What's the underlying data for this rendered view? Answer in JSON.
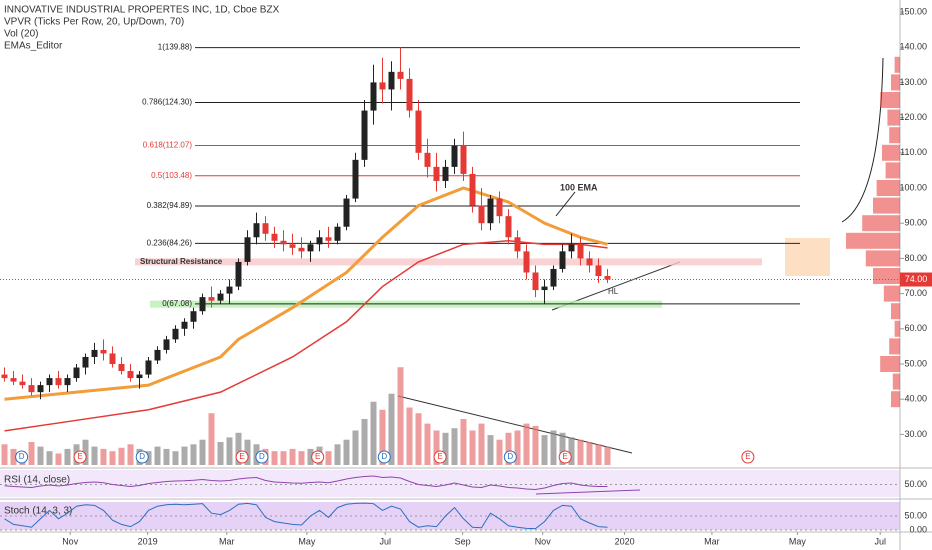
{
  "chart_data": {
    "type": "candlestick",
    "title": "INNOVATIVE INDUSTRIAL PROPERTES INC, 1D, Cboe BZX",
    "indicators": [
      "VPVR (Ticks Per Row, 20, Up/Down, 70)",
      "Vol (20)",
      "EMAs_Editor"
    ],
    "up_color": "#222222",
    "down_color": "#e53935",
    "categories": [
      null,
      null,
      null,
      null,
      null,
      null,
      null,
      null,
      null,
      null,
      null,
      null,
      null,
      null,
      null,
      null,
      null,
      null,
      null,
      null,
      null,
      null,
      null,
      null,
      null,
      null,
      null,
      null,
      null,
      null,
      null,
      null,
      null,
      null,
      null,
      null,
      null,
      null,
      null,
      null,
      null,
      null,
      null,
      null,
      null,
      null,
      null,
      null,
      null,
      null,
      null,
      null,
      null,
      null,
      null,
      null,
      null,
      null,
      null,
      null,
      null,
      null,
      null,
      null,
      null,
      null,
      null,
      null
    ],
    "open": [
      47,
      46,
      45,
      44,
      42,
      44,
      46,
      44,
      46,
      49,
      52,
      54,
      53,
      50,
      48,
      46,
      47,
      51,
      54,
      57,
      60,
      62,
      65,
      69,
      68,
      70,
      72,
      79,
      86,
      90,
      87,
      85,
      84,
      83,
      82,
      84,
      86,
      85,
      89,
      97,
      108,
      122,
      130,
      128,
      133,
      131,
      122,
      110,
      106,
      102,
      106,
      112,
      104,
      95,
      90,
      97,
      92,
      86,
      82,
      76,
      71,
      72,
      77,
      82,
      84,
      80,
      78,
      75
    ],
    "high": [
      49,
      48,
      47,
      46,
      45,
      47,
      48,
      47,
      50,
      53,
      56,
      57,
      55,
      52,
      50,
      48,
      52,
      55,
      58,
      61,
      63,
      66,
      70,
      72,
      71,
      74,
      80,
      88,
      93,
      92,
      89,
      88,
      87,
      86,
      85,
      88,
      89,
      90,
      98,
      110,
      125,
      135,
      137,
      136,
      139.88,
      134,
      125,
      114,
      110,
      108,
      114,
      116,
      106,
      100,
      98,
      99,
      94,
      88,
      84,
      78,
      74,
      78,
      84,
      87,
      86,
      82,
      80,
      77
    ],
    "low": [
      45,
      44,
      43,
      41,
      40,
      42,
      43,
      42,
      45,
      47,
      50,
      51,
      49,
      47,
      45,
      43,
      46,
      50,
      53,
      56,
      58,
      60,
      64,
      66,
      67,
      67.08,
      71,
      78,
      84,
      85,
      83,
      82,
      81,
      80,
      79,
      82,
      83,
      84,
      88,
      96,
      106,
      118,
      124,
      122,
      128,
      120,
      108,
      103,
      99,
      100,
      104,
      102,
      93,
      88,
      88,
      90,
      84,
      80,
      74,
      69,
      67,
      71,
      76,
      80,
      78,
      76,
      73,
      73
    ],
    "close": [
      46,
      45,
      44,
      42,
      44,
      46,
      44,
      46,
      49,
      52,
      54,
      53,
      50,
      48,
      46,
      47,
      51,
      54,
      57,
      60,
      62,
      65,
      69,
      68,
      70,
      72,
      79,
      86,
      90,
      87,
      85,
      84,
      83,
      82,
      84,
      86,
      85,
      89,
      97,
      108,
      122,
      130,
      128,
      133,
      131,
      122,
      110,
      106,
      102,
      106,
      112,
      104,
      95,
      90,
      97,
      92,
      86,
      82,
      76,
      71,
      72,
      77,
      82,
      84,
      80,
      78,
      75,
      74
    ],
    "volume": [
      18,
      14,
      12,
      20,
      16,
      12,
      10,
      14,
      18,
      22,
      16,
      14,
      12,
      15,
      18,
      14,
      12,
      16,
      14,
      12,
      16,
      18,
      22,
      45,
      20,
      24,
      28,
      22,
      18,
      14,
      12,
      12,
      14,
      12,
      14,
      16,
      12,
      18,
      22,
      30,
      40,
      55,
      48,
      62,
      85,
      50,
      45,
      36,
      30,
      28,
      32,
      40,
      30,
      36,
      26,
      22,
      28,
      30,
      36,
      34,
      26,
      30,
      28,
      24,
      22,
      20,
      18,
      16
    ],
    "volume_ylim": [
      0,
      100
    ],
    "ema100": {
      "name": "100 EMA",
      "color": "#f39c3a",
      "x": [
        0,
        8,
        16,
        24,
        26,
        32,
        38,
        42,
        46,
        51,
        56,
        60,
        64,
        67
      ],
      "values": [
        40,
        42,
        44,
        52,
        57,
        66,
        76,
        86,
        95,
        100,
        96,
        90,
        86,
        84
      ]
    },
    "ema200": {
      "color": "#e53935",
      "x": [
        0,
        8,
        16,
        24,
        32,
        38,
        42,
        46,
        51,
        56,
        60,
        64,
        67
      ],
      "values": [
        31,
        34,
        37,
        42,
        52,
        62,
        72,
        79,
        84,
        85,
        84,
        84,
        83
      ]
    },
    "fib": [
      {
        "value": 139.88,
        "label": "1(139.88)",
        "color": "#222222"
      },
      {
        "value": 124.3,
        "label": "0.786(124.30)",
        "color": "#222222"
      },
      {
        "value": 112.07,
        "label": "0.618(112.07)",
        "color": "#e53935"
      },
      {
        "value": 103.48,
        "label": "0.5(103.48)",
        "color": "#e53935"
      },
      {
        "value": 94.89,
        "label": "0.382(94.89)",
        "color": "#222222"
      },
      {
        "value": 84.26,
        "label": "0.236(84.26)",
        "color": "#222222"
      },
      {
        "value": 67.08,
        "label": "0(67.08)",
        "color": "#222222"
      }
    ],
    "zones": [
      {
        "label": "Structural Resistance",
        "low": 78,
        "high": 80,
        "color": "#f8c8c8"
      },
      {
        "low": 66,
        "high": 68,
        "color": "#b9f0b0"
      }
    ],
    "annotations": [
      "100 EMA",
      "HL"
    ],
    "last_price": {
      "value": 74,
      "label": "74.00"
    },
    "ylim": [
      23,
      153
    ],
    "yticks": [
      {
        "value": 30,
        "label": "30.00"
      },
      {
        "value": 40,
        "label": "40.00"
      },
      {
        "value": 50,
        "label": "50.00"
      },
      {
        "value": 60,
        "label": "60.00"
      },
      {
        "value": 70,
        "label": "70.00"
      },
      {
        "value": 80,
        "label": "80.00"
      },
      {
        "value": 90,
        "label": "90.00"
      },
      {
        "value": 100,
        "label": "100.00"
      },
      {
        "value": 110,
        "label": "110.00"
      },
      {
        "value": 120,
        "label": "120.00"
      },
      {
        "value": 130,
        "label": "130.00"
      },
      {
        "value": 140,
        "label": "140.00"
      },
      {
        "value": 150,
        "label": "150.00"
      }
    ],
    "xlim": [
      0,
      100
    ],
    "xticks": [
      {
        "value": 7.8,
        "label": "Nov"
      },
      {
        "value": 16.4,
        "label": "2019"
      },
      {
        "value": 25.2,
        "label": "Mar"
      },
      {
        "value": 34.1,
        "label": "May"
      },
      {
        "value": 42.8,
        "label": "Jul"
      },
      {
        "value": 51.4,
        "label": "Sep"
      },
      {
        "value": 60.3,
        "label": "Nov"
      },
      {
        "value": 69.4,
        "label": "2020"
      },
      {
        "value": 79.1,
        "label": "Mar"
      },
      {
        "value": 88.6,
        "label": "May"
      },
      {
        "value": 97.8,
        "label": "Jul"
      }
    ],
    "events": {
      "x": [
        2.4,
        8.9,
        15.8,
        26.9,
        29.1,
        35.3,
        42.7,
        48.9,
        56.7,
        62.8,
        83.1
      ],
      "labels": [
        "D",
        "E",
        "D",
        "E",
        "D",
        "E",
        "D",
        "E",
        "D",
        "E",
        "E"
      ]
    },
    "vpvr": {
      "prices": [
        40,
        45,
        50,
        55,
        60,
        65,
        70,
        75,
        80,
        85,
        90,
        95,
        100,
        105,
        110,
        115,
        120,
        125,
        130,
        135
      ],
      "volumes": [
        10,
        8,
        22,
        12,
        6,
        10,
        18,
        30,
        38,
        60,
        42,
        30,
        26,
        16,
        20,
        12,
        14,
        22,
        10,
        6
      ],
      "color": "#e53935"
    },
    "rsi": {
      "name": "RSI (14, close)",
      "color": "#8e44ad",
      "ylim": [
        0,
        100
      ],
      "yticks": [
        {
          "value": 50,
          "label": "50.00"
        }
      ],
      "values": [
        45,
        42,
        40,
        38,
        44,
        48,
        44,
        48,
        54,
        58,
        60,
        57,
        50,
        46,
        42,
        46,
        54,
        58,
        62,
        64,
        65,
        67,
        70,
        66,
        64,
        66,
        72,
        76,
        78,
        66,
        60,
        58,
        56,
        55,
        58,
        60,
        57,
        64,
        72,
        78,
        82,
        84,
        78,
        80,
        76,
        62,
        50,
        46,
        42,
        48,
        56,
        48,
        40,
        38,
        48,
        44,
        38,
        36,
        32,
        30,
        36,
        46,
        54,
        56,
        48,
        44,
        42,
        42
      ]
    },
    "stoch": {
      "name": "Stoch (14, 3, 3)",
      "color": "#2c6fbf",
      "ylim": [
        0,
        100
      ],
      "yticks": [
        {
          "value": 50,
          "label": "50.00"
        },
        {
          "value": 0,
          "label": "0.00"
        }
      ],
      "values": [
        40,
        20,
        15,
        10,
        40,
        70,
        40,
        60,
        85,
        90,
        88,
        70,
        35,
        20,
        12,
        30,
        70,
        85,
        90,
        92,
        90,
        92,
        94,
        60,
        55,
        70,
        92,
        95,
        90,
        45,
        30,
        25,
        20,
        18,
        50,
        70,
        45,
        80,
        92,
        95,
        96,
        94,
        70,
        85,
        75,
        30,
        10,
        15,
        12,
        50,
        80,
        40,
        10,
        8,
        60,
        40,
        15,
        10,
        6,
        5,
        30,
        70,
        88,
        85,
        40,
        25,
        12,
        10
      ]
    }
  }
}
